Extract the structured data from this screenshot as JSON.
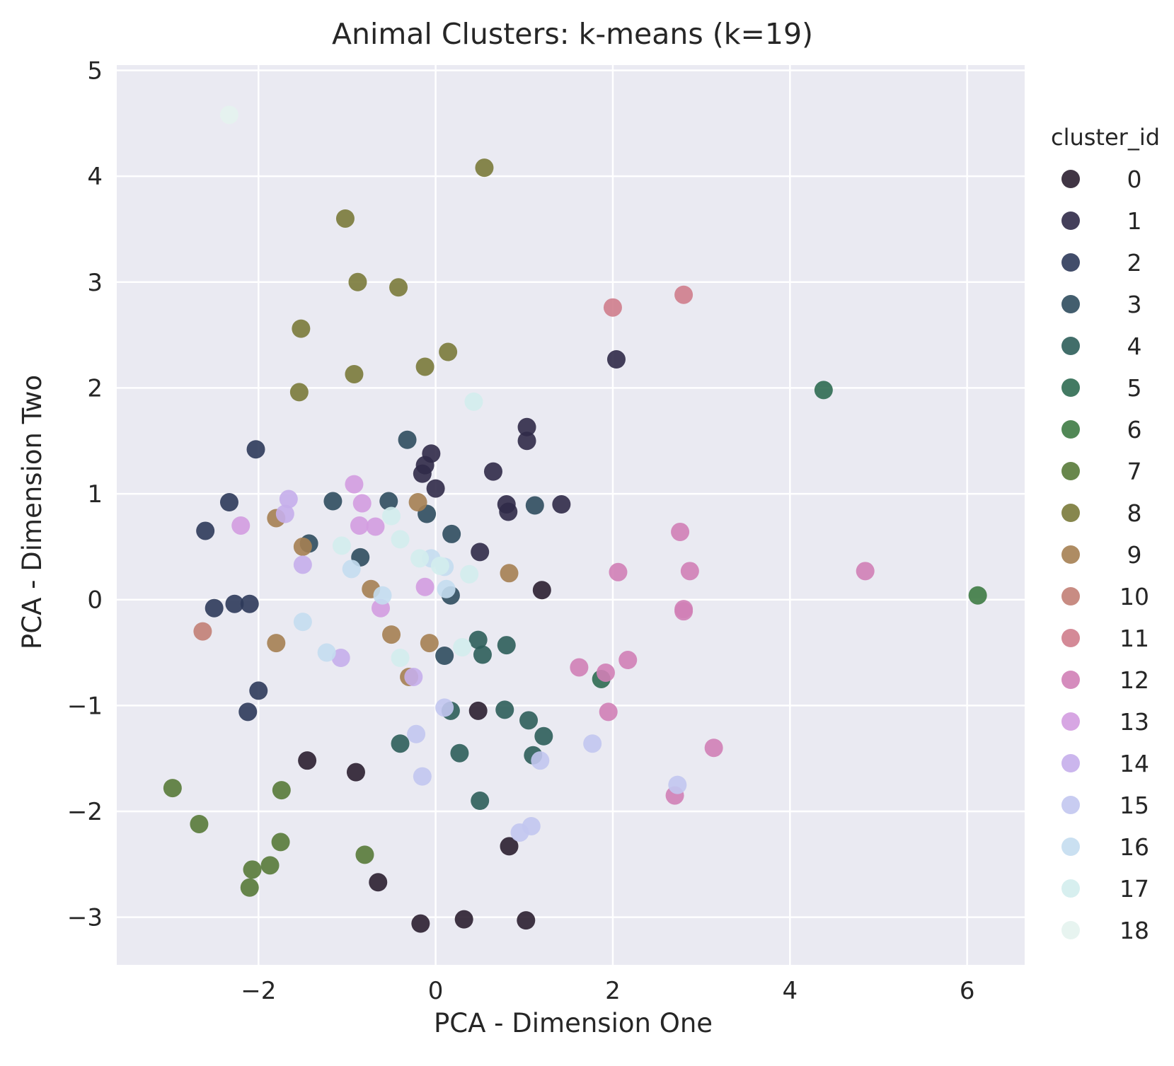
{
  "chart_data": {
    "type": "scatter",
    "title": "Animal Clusters: k-means (k=19)",
    "xlabel": "PCA - Dimension One",
    "ylabel": "PCA - Dimension Two",
    "xlim": [
      -3.6,
      6.65
    ],
    "ylim": [
      -3.45,
      5.05
    ],
    "xticks": [
      -2,
      0,
      2,
      4,
      6
    ],
    "xtick_labels": [
      "−2",
      "0",
      "2",
      "4",
      "6"
    ],
    "yticks": [
      -3,
      -2,
      -1,
      0,
      1,
      2,
      3,
      4,
      5
    ],
    "ytick_labels": [
      "−3",
      "−2",
      "−1",
      "0",
      "1",
      "2",
      "3",
      "4",
      "5"
    ],
    "grid": true,
    "background": "#eaeaf2",
    "legend": {
      "title": "cluster_id",
      "placement": "outside-right"
    },
    "series": [
      {
        "name": "0",
        "color": "#2b1f30",
        "points": [
          [
            -1.45,
            -1.52
          ],
          [
            -0.9,
            -1.63
          ],
          [
            -0.65,
            -2.67
          ],
          [
            -0.17,
            -3.06
          ],
          [
            0.32,
            -3.02
          ],
          [
            1.02,
            -3.03
          ],
          [
            0.83,
            -2.33
          ],
          [
            0.48,
            -1.05
          ],
          [
            1.2,
            0.09
          ]
        ]
      },
      {
        "name": "1",
        "color": "#302a48",
        "points": [
          [
            -0.05,
            1.38
          ],
          [
            -0.12,
            1.27
          ],
          [
            -0.15,
            1.19
          ],
          [
            0,
            1.05
          ],
          [
            0.65,
            1.21
          ],
          [
            1.03,
            1.63
          ],
          [
            1.03,
            1.5
          ],
          [
            0.8,
            0.9
          ],
          [
            0.82,
            0.83
          ],
          [
            1.42,
            0.9
          ],
          [
            2.04,
            2.27
          ],
          [
            0.5,
            0.45
          ]
        ]
      },
      {
        "name": "2",
        "color": "#2d3a5a",
        "points": [
          [
            -2.03,
            1.42
          ],
          [
            -2.33,
            0.92
          ],
          [
            -2.6,
            0.65
          ],
          [
            -2.5,
            -0.08
          ],
          [
            -2.27,
            -0.04
          ],
          [
            -2.1,
            -0.04
          ],
          [
            -2.0,
            -0.86
          ],
          [
            -2.12,
            -1.06
          ]
        ]
      },
      {
        "name": "3",
        "color": "#2f4d5e",
        "points": [
          [
            -0.32,
            1.51
          ],
          [
            -1.16,
            0.93
          ],
          [
            -0.53,
            0.93
          ],
          [
            -0.1,
            0.81
          ],
          [
            0.18,
            0.62
          ],
          [
            1.12,
            0.89
          ],
          [
            -1.43,
            0.53
          ],
          [
            -0.85,
            0.4
          ],
          [
            0.17,
            0.04
          ],
          [
            0.1,
            -0.53
          ]
        ]
      },
      {
        "name": "4",
        "color": "#2d5e5a",
        "points": [
          [
            0.48,
            -0.38
          ],
          [
            0.53,
            -0.52
          ],
          [
            0.8,
            -0.43
          ],
          [
            0.78,
            -1.04
          ],
          [
            1.05,
            -1.14
          ],
          [
            1.22,
            -1.29
          ],
          [
            1.1,
            -1.47
          ],
          [
            0.27,
            -1.45
          ],
          [
            0.5,
            -1.9
          ],
          [
            -0.4,
            -1.36
          ],
          [
            0.17,
            -1.05
          ]
        ]
      },
      {
        "name": "5",
        "color": "#2f6c52",
        "points": [
          [
            4.38,
            1.98
          ],
          [
            1.87,
            -0.75
          ]
        ]
      },
      {
        "name": "6",
        "color": "#3e7b44",
        "points": [
          [
            6.12,
            0.04
          ]
        ]
      },
      {
        "name": "7",
        "color": "#587a38",
        "points": [
          [
            -2.97,
            -1.78
          ],
          [
            -2.67,
            -2.12
          ],
          [
            -1.74,
            -1.8
          ],
          [
            -1.75,
            -2.29
          ],
          [
            -2.07,
            -2.55
          ],
          [
            -1.87,
            -2.51
          ],
          [
            -2.1,
            -2.72
          ],
          [
            -0.8,
            -2.41
          ]
        ]
      },
      {
        "name": "8",
        "color": "#7a7a3a",
        "points": [
          [
            0.55,
            4.08
          ],
          [
            -1.02,
            3.6
          ],
          [
            -0.88,
            3.0
          ],
          [
            -0.42,
            2.95
          ],
          [
            -1.52,
            2.56
          ],
          [
            -0.92,
            2.13
          ],
          [
            0.14,
            2.34
          ],
          [
            -0.12,
            2.2
          ],
          [
            -1.54,
            1.96
          ]
        ]
      },
      {
        "name": "9",
        "color": "#a58052",
        "points": [
          [
            -0.2,
            0.92
          ],
          [
            -1.8,
            0.77
          ],
          [
            -1.5,
            0.5
          ],
          [
            -0.73,
            0.1
          ],
          [
            0.83,
            0.25
          ],
          [
            -0.5,
            -0.33
          ],
          [
            -1.8,
            -0.41
          ],
          [
            -0.07,
            -0.41
          ],
          [
            -0.3,
            -0.73
          ]
        ]
      },
      {
        "name": "10",
        "color": "#c27f75",
        "points": [
          [
            -2.63,
            -0.3
          ]
        ]
      },
      {
        "name": "11",
        "color": "#cf7d8c",
        "points": [
          [
            2.0,
            2.76
          ],
          [
            2.8,
            2.88
          ]
        ]
      },
      {
        "name": "12",
        "color": "#d07fb6",
        "points": [
          [
            2.76,
            0.64
          ],
          [
            2.87,
            0.27
          ],
          [
            2.06,
            0.26
          ],
          [
            4.85,
            0.27
          ],
          [
            2.8,
            -0.09
          ],
          [
            2.8,
            -0.11
          ],
          [
            1.62,
            -0.64
          ],
          [
            1.92,
            -0.69
          ],
          [
            2.17,
            -0.57
          ],
          [
            1.95,
            -1.06
          ],
          [
            3.14,
            -1.4
          ],
          [
            2.7,
            -1.85
          ]
        ]
      },
      {
        "name": "13",
        "color": "#d39ce0",
        "points": [
          [
            -0.92,
            1.09
          ],
          [
            -0.83,
            0.91
          ],
          [
            -0.86,
            0.7
          ],
          [
            -0.68,
            0.69
          ],
          [
            -2.2,
            0.7
          ],
          [
            -0.12,
            0.12
          ],
          [
            -0.62,
            -0.08
          ]
        ]
      },
      {
        "name": "14",
        "color": "#c5aeeb",
        "points": [
          [
            -1.66,
            0.95
          ],
          [
            -1.7,
            0.81
          ],
          [
            -1.5,
            0.33
          ],
          [
            -1.07,
            -0.55
          ],
          [
            -0.25,
            -0.73
          ]
        ]
      },
      {
        "name": "15",
        "color": "#c2c6f0",
        "points": [
          [
            -0.22,
            -1.27
          ],
          [
            -0.15,
            -1.67
          ],
          [
            0.1,
            -1.02
          ],
          [
            1.18,
            -1.52
          ],
          [
            1.77,
            -1.36
          ],
          [
            0.95,
            -2.2
          ],
          [
            1.08,
            -2.14
          ],
          [
            2.73,
            -1.75
          ]
        ]
      },
      {
        "name": "16",
        "color": "#c4ddef",
        "points": [
          [
            -0.95,
            0.29
          ],
          [
            -0.6,
            0.04
          ],
          [
            -1.5,
            -0.21
          ],
          [
            -1.23,
            -0.5
          ],
          [
            -0.05,
            0.39
          ],
          [
            0.1,
            0.31
          ],
          [
            0.12,
            0.1
          ]
        ]
      },
      {
        "name": "17",
        "color": "#d3eded",
        "points": [
          [
            0.43,
            1.87
          ],
          [
            -1.06,
            0.51
          ],
          [
            -0.5,
            0.79
          ],
          [
            -0.4,
            0.57
          ],
          [
            -0.18,
            0.39
          ],
          [
            0.05,
            0.32
          ],
          [
            0.38,
            0.24
          ],
          [
            0.3,
            -0.45
          ],
          [
            -0.4,
            -0.55
          ]
        ]
      },
      {
        "name": "18",
        "color": "#e4f3ee",
        "points": [
          [
            -2.33,
            4.58
          ]
        ]
      }
    ]
  }
}
